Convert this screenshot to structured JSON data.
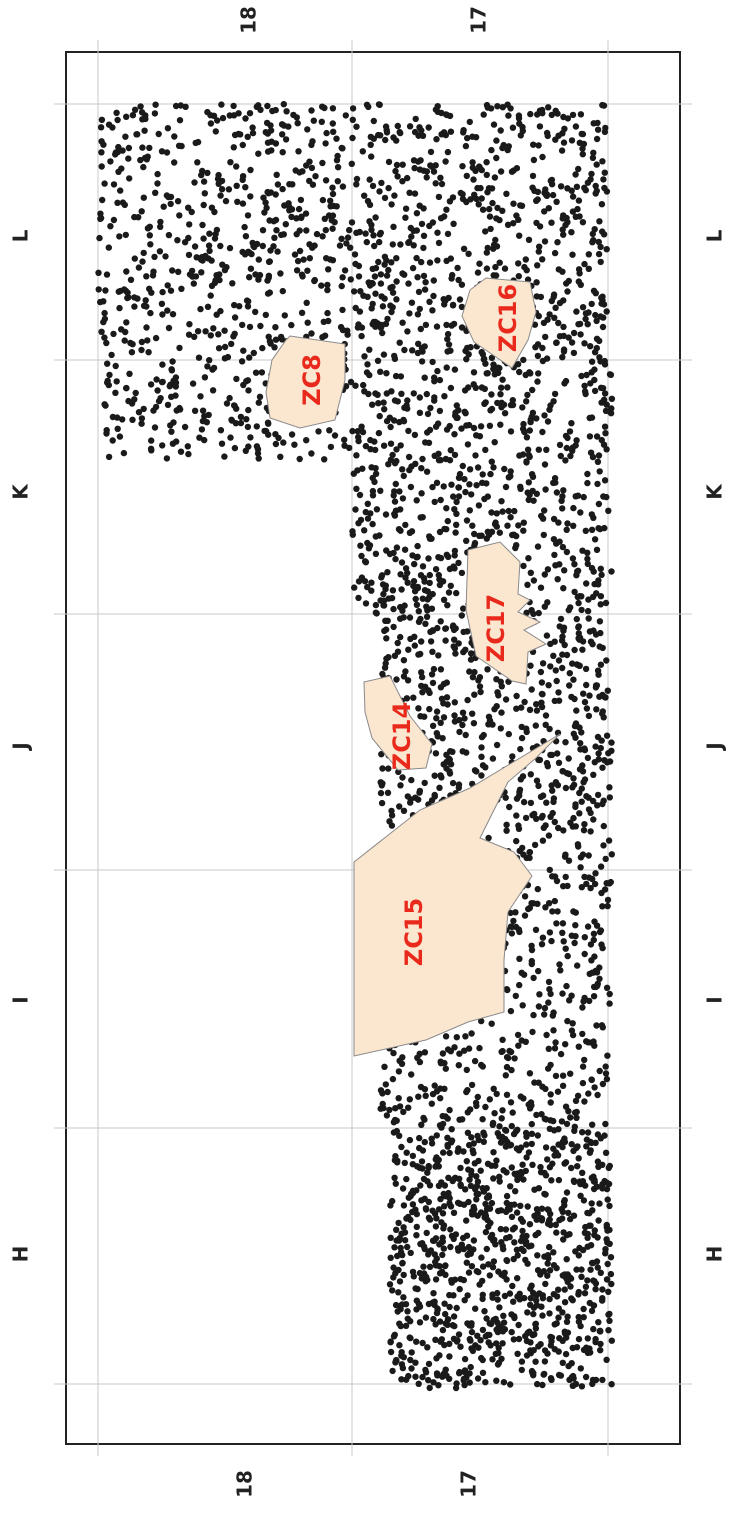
{
  "columns": [
    "H",
    "I",
    "J",
    "K",
    "L"
  ],
  "rows": [
    "18",
    "17"
  ],
  "zones": [
    {
      "id": "zc8",
      "label": "ZC8"
    },
    {
      "id": "zc16",
      "label": "ZC16"
    },
    {
      "id": "zc17",
      "label": "ZC17"
    },
    {
      "id": "zc14",
      "label": "ZC14"
    },
    {
      "id": "zc15",
      "label": "ZC15"
    }
  ],
  "colors": {
    "zone_fill": "#fbe6d0",
    "zone_stroke": "#8a8a8a",
    "zone_label": "#e8291c",
    "dot": "#1a1a1a",
    "grid": "#c8c8c8",
    "frame": "#222222"
  }
}
